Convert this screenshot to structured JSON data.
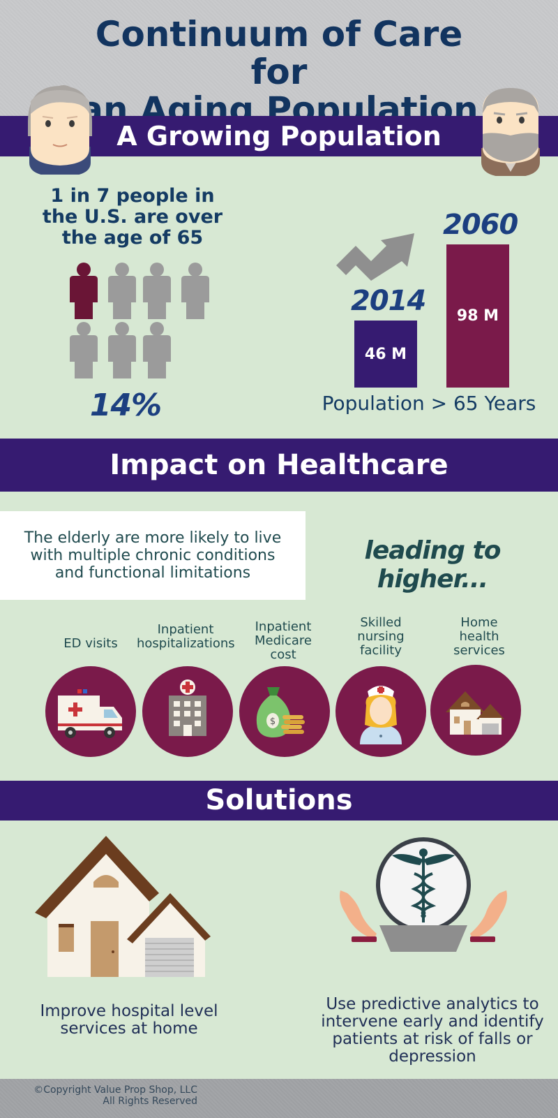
{
  "header": {
    "title_line1": "Continuum of Care for",
    "title_line2": "an Aging Population"
  },
  "growing": {
    "heading": "A Growing Population",
    "stat_line1": "1 in 7 people in",
    "stat_line2": "the U.S. are over",
    "stat_line3": "the age of 65",
    "percent": "14%",
    "people_highlighted": 1,
    "people_total": 7
  },
  "chart_data": {
    "type": "bar",
    "categories": [
      "2014",
      "2060"
    ],
    "values": [
      46,
      98
    ],
    "value_labels": [
      "46 M",
      "98 M"
    ],
    "xlabel": "Population > 65 Years",
    "colors": [
      "#361b71",
      "#7a1a4a"
    ]
  },
  "impact": {
    "heading": "Impact on Healthcare",
    "description_line1": "The elderly are more likely to live",
    "description_line2": "with multiple chronic conditions",
    "description_line3": "and functional limitations",
    "leading": "leading to higher...",
    "categories": [
      {
        "lines": [
          "ED visits"
        ],
        "icon": "ambulance-icon"
      },
      {
        "lines": [
          "Inpatient",
          "hospitalizations"
        ],
        "icon": "hospital-icon"
      },
      {
        "lines": [
          "Inpatient",
          "Medicare",
          "cost"
        ],
        "icon": "money-bag-icon"
      },
      {
        "lines": [
          "Skilled",
          "nursing",
          "facility"
        ],
        "icon": "nurse-icon"
      },
      {
        "lines": [
          "Home",
          "health",
          "services"
        ],
        "icon": "house-icon"
      }
    ]
  },
  "solutions": {
    "heading": "Solutions",
    "left_line1": "Improve hospital level",
    "left_line2": "services at home",
    "right_line1": "Use predictive analytics to",
    "right_line2": "intervene early and identify",
    "right_line3": "patients at risk of falls or",
    "right_line4": "depression"
  },
  "footer": {
    "copyright": "©Copyright Value Prop Shop, LLC",
    "rights": "All Rights Reserved"
  },
  "colors": {
    "background": "#d7e8d3",
    "band": "#361b71",
    "maroon": "#7a1a4a",
    "title": "#12345f"
  }
}
